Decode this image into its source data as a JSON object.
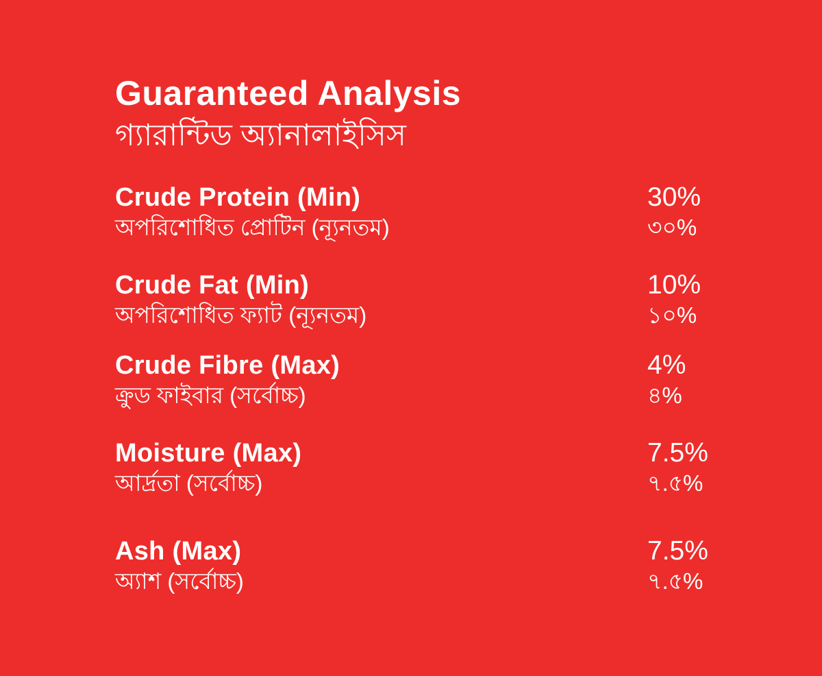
{
  "page": {
    "background_color": "#ED2D2B",
    "text_color": "#FFFFFF"
  },
  "header": {
    "title_en": "Guaranteed Analysis",
    "title_bn": "গ্যারান্টিড অ্যানালাইসিস"
  },
  "analysis": {
    "rows": [
      {
        "label_en": "Crude Protein (Min)",
        "label_bn": "অপরিশোধিত প্রোটিন (ন্যূনতম)",
        "value_en": "30%",
        "value_bn": "৩০%"
      },
      {
        "label_en": "Crude Fat (Min)",
        "label_bn": "অপরিশোধিত ফ্যাট (ন্যূনতম)",
        "value_en": "10%",
        "value_bn": "১০%"
      },
      {
        "label_en": "Crude Fibre (Max)",
        "label_bn": "ক্রুড ফাইবার (সর্বোচ্চ)",
        "value_en": "4%",
        "value_bn": "৪%"
      },
      {
        "label_en": "Moisture (Max)",
        "label_bn": "আর্দ্রতা (সর্বোচ্চ)",
        "value_en": "7.5%",
        "value_bn": "৭.৫%"
      },
      {
        "label_en": "Ash (Max)",
        "label_bn": "অ্যাশ (সর্বোচ্চ)",
        "value_en": "7.5%",
        "value_bn": "৭.৫%"
      }
    ]
  }
}
